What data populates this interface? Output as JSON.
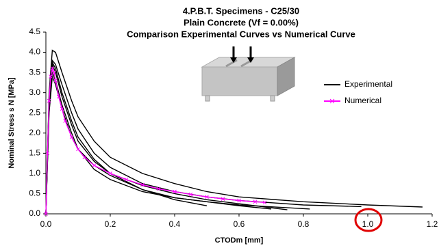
{
  "chart_data": {
    "type": "line",
    "title": [
      "4.P.B.T. Specimens - C25/30",
      "Plain Concrete (Vf = 0.00%)",
      "Comparison Experimental Curves vs Numerical Curve"
    ],
    "x_label": "CTODm [mm]",
    "y_label": "Nominal Stress s N [MPa]",
    "xlim": [
      0,
      1.2
    ],
    "ylim": [
      0,
      4.5
    ],
    "xticks": [
      {
        "value": 0,
        "label": "0.0"
      },
      0.2,
      0.4,
      0.6,
      0.8,
      {
        "value": 1,
        "label": "1.0"
      },
      1.2
    ],
    "yticks": [
      {
        "value": 0,
        "label": "0.0"
      },
      0.5,
      {
        "value": 1,
        "label": "1.0"
      },
      1.5,
      {
        "value": 2,
        "label": "2.0"
      },
      2.5,
      {
        "value": 3,
        "label": "3.0"
      },
      3.5,
      {
        "value": 4,
        "label": "4.0"
      },
      4.5
    ],
    "series": [
      {
        "name": "Experimental",
        "color": "#000000",
        "lines": [
          {
            "x": [
              0,
              0.01,
              0.02,
              0.03,
              0.05,
              0.08,
              0.1,
              0.15,
              0.2,
              0.3,
              0.4,
              0.5,
              0.6,
              0.8,
              1.0,
              1.17
            ],
            "values": [
              0,
              3.0,
              4.05,
              4.0,
              3.5,
              2.8,
              2.4,
              1.8,
              1.4,
              1.0,
              0.75,
              0.55,
              0.42,
              0.3,
              0.22,
              0.17
            ]
          },
          {
            "x": [
              0,
              0.01,
              0.02,
              0.03,
              0.05,
              0.08,
              0.1,
              0.15,
              0.2,
              0.3,
              0.4,
              0.5,
              0.6,
              0.8,
              0.98
            ],
            "values": [
              0,
              2.8,
              3.8,
              3.7,
              3.2,
              2.5,
              2.1,
              1.5,
              1.15,
              0.75,
              0.55,
              0.42,
              0.33,
              0.22,
              0.18
            ]
          },
          {
            "x": [
              0,
              0.01,
              0.02,
              0.03,
              0.05,
              0.08,
              0.1,
              0.15,
              0.2,
              0.3,
              0.4,
              0.5,
              0.6,
              0.82
            ],
            "values": [
              0,
              2.9,
              3.75,
              3.6,
              3.0,
              2.3,
              1.9,
              1.35,
              1.0,
              0.6,
              0.4,
              0.3,
              0.22,
              0.12
            ]
          },
          {
            "x": [
              0,
              0.01,
              0.02,
              0.03,
              0.05,
              0.08,
              0.1,
              0.15,
              0.2,
              0.3,
              0.4,
              0.5,
              0.6,
              0.75
            ],
            "values": [
              0,
              2.7,
              3.7,
              3.5,
              2.9,
              2.2,
              1.8,
              1.3,
              1.0,
              0.7,
              0.5,
              0.35,
              0.25,
              0.1
            ]
          },
          {
            "x": [
              0,
              0.01,
              0.02,
              0.03,
              0.05,
              0.08,
              0.1,
              0.15,
              0.2,
              0.3,
              0.4,
              0.5,
              0.6,
              0.7
            ],
            "values": [
              0,
              2.6,
              3.5,
              3.3,
              2.7,
              2.0,
              1.6,
              1.1,
              0.85,
              0.55,
              0.4,
              0.3,
              0.2,
              0.12
            ]
          },
          {
            "x": [
              0,
              0.01,
              0.02,
              0.03,
              0.05,
              0.08,
              0.1,
              0.15,
              0.2,
              0.3,
              0.4,
              0.5
            ],
            "values": [
              0,
              2.5,
              3.4,
              3.2,
              2.6,
              1.9,
              1.6,
              1.2,
              0.95,
              0.6,
              0.35,
              0.2
            ]
          }
        ]
      },
      {
        "name": "Numerical",
        "color": "#ff00ff",
        "marker": "x",
        "lines": [
          {
            "x": [
              0,
              0.005,
              0.01,
              0.015,
              0.02,
              0.025,
              0.03,
              0.04,
              0.05,
              0.06,
              0.08,
              0.1,
              0.12,
              0.15,
              0.2,
              0.25,
              0.3,
              0.35,
              0.4,
              0.45,
              0.5,
              0.55,
              0.6,
              0.65,
              0.68
            ],
            "values": [
              0,
              1.5,
              2.8,
              3.4,
              3.6,
              3.5,
              3.3,
              2.9,
              2.6,
              2.3,
              1.9,
              1.6,
              1.4,
              1.2,
              1.0,
              0.85,
              0.72,
              0.62,
              0.55,
              0.48,
              0.42,
              0.37,
              0.33,
              0.3,
              0.28
            ]
          }
        ]
      }
    ]
  }
}
